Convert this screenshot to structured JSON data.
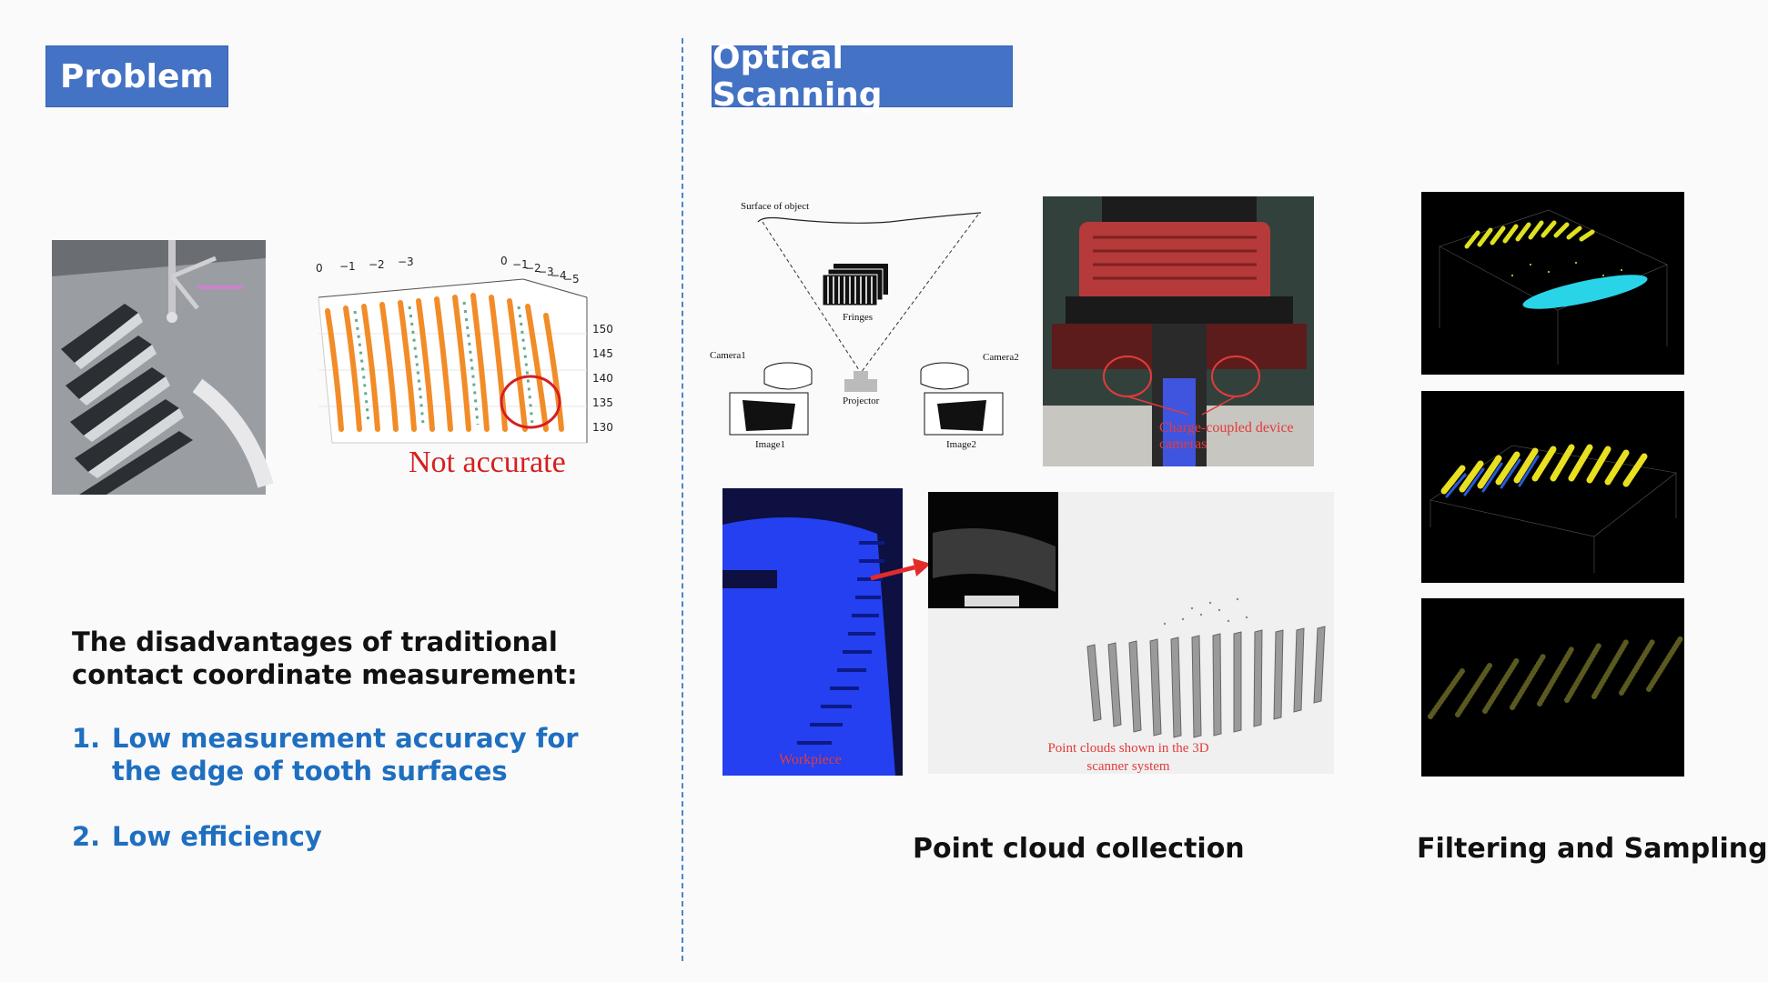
{
  "left_panel": {
    "header": "Problem",
    "plot_annotation": "Not accurate",
    "plot_axes": {
      "x_ticks": [
        "0",
        "−1",
        "−2",
        "−3"
      ],
      "y_ticks": [
        "0",
        "−1",
        "−2",
        "−3",
        "−4",
        "−5"
      ],
      "z_ticks": [
        "150",
        "145",
        "140",
        "135",
        "130"
      ]
    },
    "disadvantages_title": "The disadvantages of traditional contact coordinate measurement:",
    "items": [
      {
        "num": "1.",
        "text": "Low measurement accuracy for the edge of tooth surfaces"
      },
      {
        "num": "2.",
        "text": "Low efficiency"
      }
    ]
  },
  "right_panel": {
    "header": "Optical Scanning",
    "diagram": {
      "surface": "Surface of object",
      "fringes": "Fringes",
      "camera1": "Camera1",
      "camera2": "Camera2",
      "projector": "Projector",
      "image1": "Image1",
      "image2": "Image2"
    },
    "scanner_label": "Charge-coupled device cameras",
    "workpiece_label": "Workpiece",
    "scanner_system_label": "Point clouds shown in the 3D scanner system",
    "caption_collection": "Point cloud collection",
    "caption_filtering": "Filtering and Sampling"
  },
  "colors": {
    "header_bg": "#4472c4",
    "accent_blue": "#1f6fc0",
    "annotation_red": "#d42020",
    "divider": "#4a86c8"
  }
}
